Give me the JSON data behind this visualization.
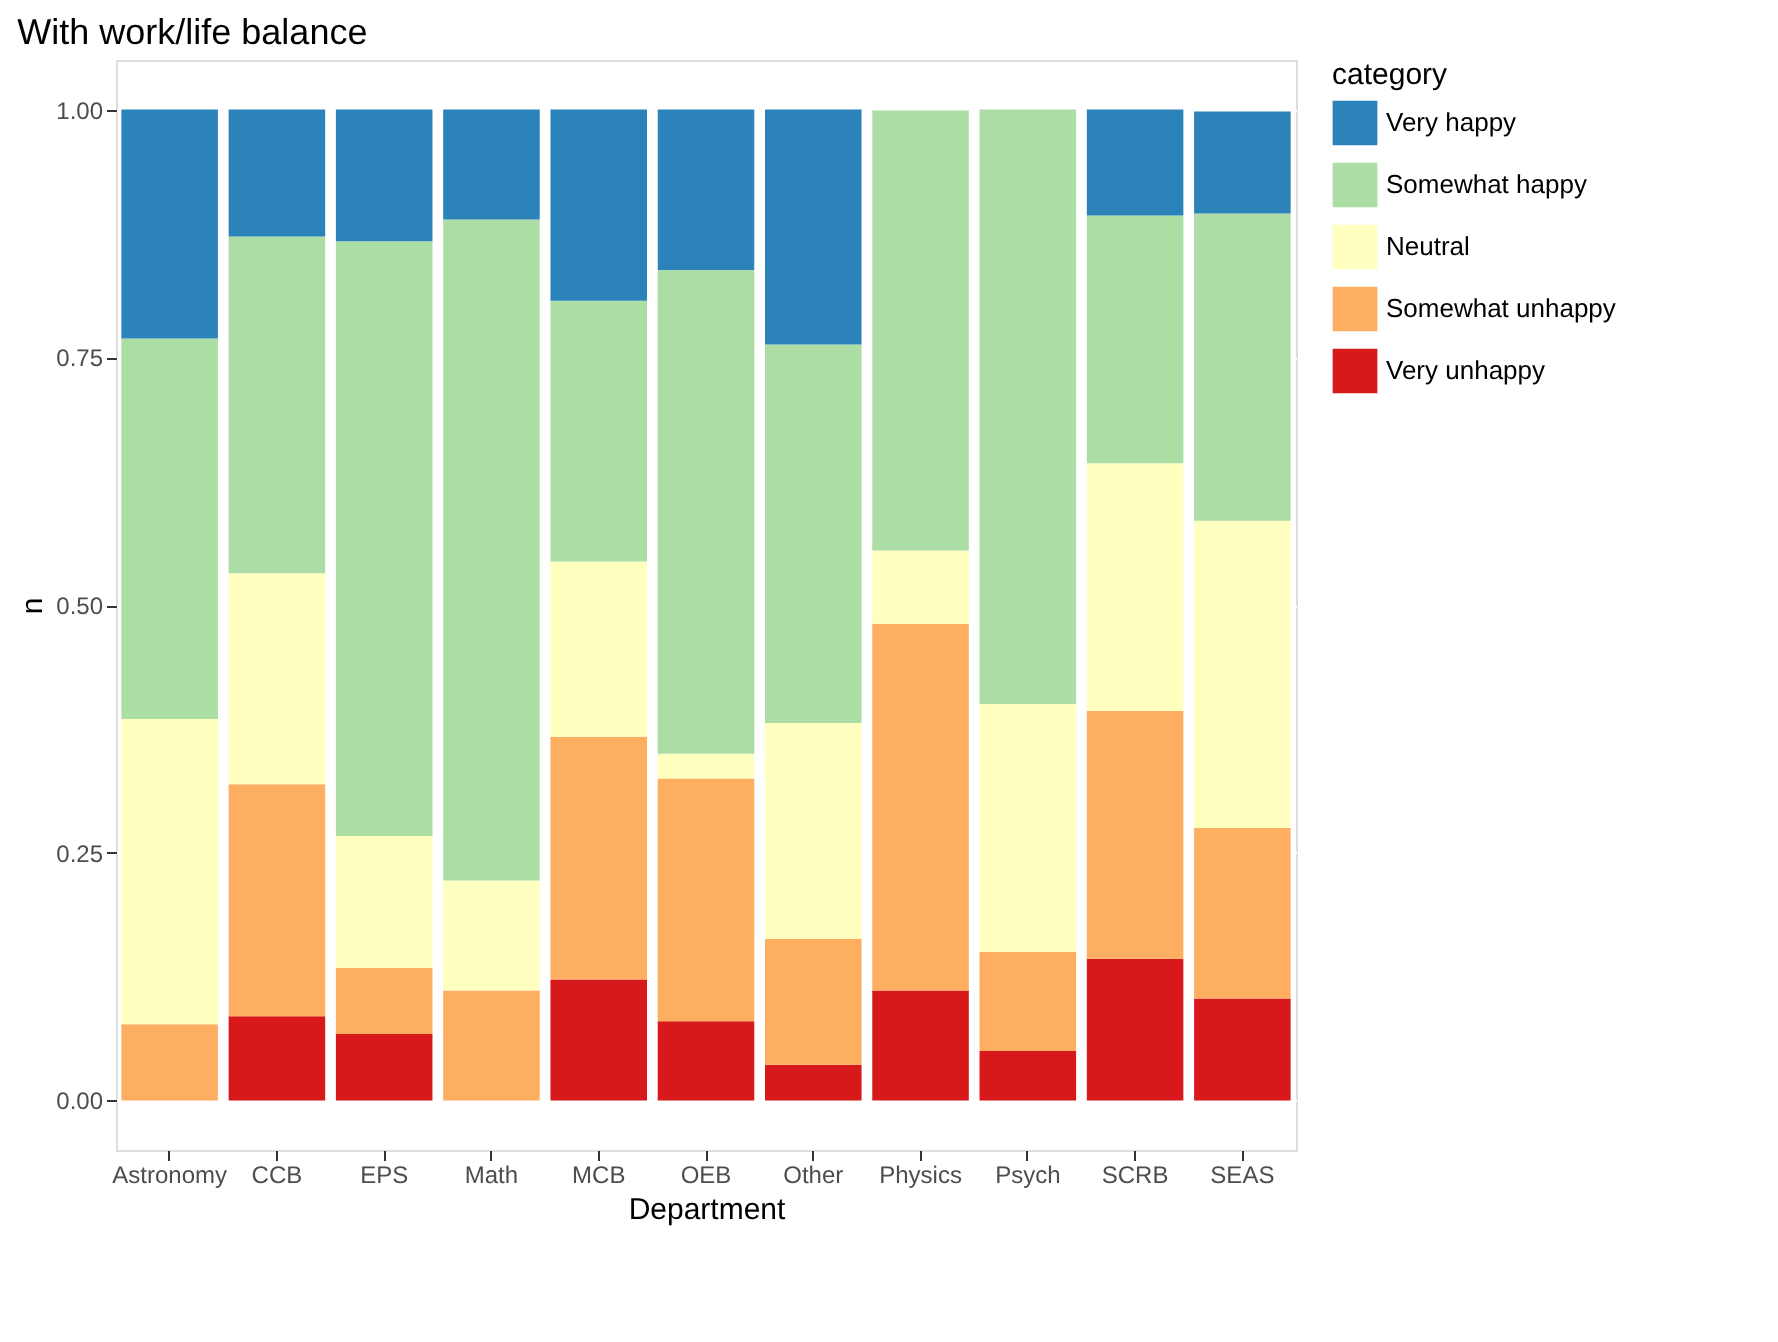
{
  "chart_data": {
    "type": "bar",
    "title": "With work/life balance",
    "xlabel": "Department",
    "ylabel": "n",
    "legend_title": "category",
    "stacked": true,
    "grid": true,
    "legend": "right",
    "categories": [
      "Astronomy",
      "CCB",
      "EPS",
      "Math",
      "MCB",
      "OEB",
      "Other",
      "Physics",
      "Psych",
      "SCRB",
      "SEAS"
    ],
    "ylim": [
      -0.05,
      1.05
    ],
    "yticks": [
      {
        "value": 0,
        "label": "0.00"
      },
      {
        "value": 0.25,
        "label": "0.25"
      },
      {
        "value": 0.5,
        "label": "0.50"
      },
      {
        "value": 0.75,
        "label": "0.75"
      },
      {
        "value": 1,
        "label": "1.00"
      }
    ],
    "series": [
      {
        "name": "Very unhappy",
        "color": "#d7191c",
        "values": [
          0,
          0.085,
          0.067,
          0,
          0.122,
          0.08,
          0.036,
          0.111,
          0.05,
          0.143,
          0.103
        ]
      },
      {
        "name": "Somewhat unhappy",
        "color": "#fdae61",
        "values": [
          0.077,
          0.234,
          0.067,
          0.111,
          0.245,
          0.245,
          0.127,
          0.37,
          0.1,
          0.25,
          0.172
        ]
      },
      {
        "name": "Neutral",
        "color": "#ffffbf",
        "values": [
          0.308,
          0.213,
          0.133,
          0.111,
          0.177,
          0.025,
          0.218,
          0.074,
          0.25,
          0.25,
          0.31
        ]
      },
      {
        "name": "Somewhat happy",
        "color": "#abdda4",
        "values": [
          0.384,
          0.34,
          0.6,
          0.667,
          0.263,
          0.488,
          0.382,
          0.444,
          0.6,
          0.25,
          0.31
        ]
      },
      {
        "name": "Very happy",
        "color": "#2b83ba",
        "values": [
          0.231,
          0.128,
          0.133,
          0.111,
          0.193,
          0.162,
          0.237,
          0,
          0,
          0.107,
          0.103
        ]
      }
    ]
  }
}
